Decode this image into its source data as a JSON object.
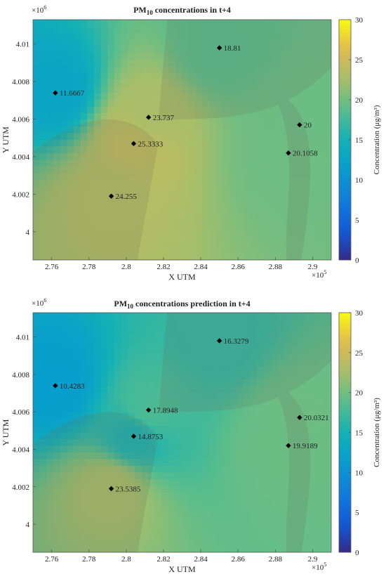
{
  "figure": {
    "colorbar_ticks": [
      "30",
      "25",
      "20",
      "15",
      "10",
      "5",
      "0"
    ],
    "x_tick_labels": [
      "2.76",
      "2.78",
      "2.8",
      "2.82",
      "2.84",
      "2.86",
      "2.88",
      "2.9"
    ],
    "y_tick_labels": [
      "4.01",
      "4.008",
      "4.006",
      "4.004",
      "4.002",
      "4"
    ]
  },
  "chart_data": [
    {
      "type": "heatmap",
      "title_main": "PM",
      "title_sub": "10",
      "title_rest": " concentrations in t+4",
      "xlabel": "X UTM",
      "ylabel": "Y UTM",
      "x_exponent_base": "×10",
      "x_exponent_power": "5",
      "y_exponent_base": "×10",
      "y_exponent_power": "6",
      "colorbar_label": "Concentration (μg/m³)",
      "colorbar_range": [
        0,
        30
      ],
      "colormap": "parula",
      "xlim": [
        2.75,
        2.91
      ],
      "ylim": [
        3.9985,
        4.0113
      ],
      "stations": [
        {
          "x": 2.762,
          "y": 4.0074,
          "value": 11.6667,
          "label": "11.6667"
        },
        {
          "x": 2.85,
          "y": 4.0098,
          "value": 18.81,
          "label": "18.81"
        },
        {
          "x": 2.812,
          "y": 4.0061,
          "value": 23.737,
          "label": "23.737"
        },
        {
          "x": 2.804,
          "y": 4.0047,
          "value": 25.3333,
          "label": "25.3333"
        },
        {
          "x": 2.893,
          "y": 4.0057,
          "value": 20,
          "label": "20"
        },
        {
          "x": 2.887,
          "y": 4.0042,
          "value": 20.1058,
          "label": "20.1058"
        },
        {
          "x": 2.792,
          "y": 4.0019,
          "value": 24.255,
          "label": "24.255"
        }
      ]
    },
    {
      "type": "heatmap",
      "title_main": "PM",
      "title_sub": "10",
      "title_rest": " concentrations prediction in t+4",
      "xlabel": "X UTM",
      "ylabel": "Y UTM",
      "x_exponent_base": "×10",
      "x_exponent_power": "5",
      "y_exponent_base": "×10",
      "y_exponent_power": "6",
      "colorbar_label": "Concentration (μg/m³)",
      "colorbar_range": [
        0,
        30
      ],
      "colormap": "parula",
      "xlim": [
        2.75,
        2.91
      ],
      "ylim": [
        3.9985,
        4.0113
      ],
      "stations": [
        {
          "x": 2.762,
          "y": 4.0074,
          "value": 10.4283,
          "label": "10.4283"
        },
        {
          "x": 2.85,
          "y": 4.0098,
          "value": 16.3279,
          "label": "16.3279"
        },
        {
          "x": 2.812,
          "y": 4.0061,
          "value": 17.8948,
          "label": "17.8948"
        },
        {
          "x": 2.804,
          "y": 4.0047,
          "value": 14.8753,
          "label": "14.8753"
        },
        {
          "x": 2.893,
          "y": 4.0057,
          "value": 20.0321,
          "label": "20.0321"
        },
        {
          "x": 2.887,
          "y": 4.0042,
          "value": 19.9189,
          "label": "19.9189"
        },
        {
          "x": 2.792,
          "y": 4.0019,
          "value": 23.5385,
          "label": "23.5385"
        }
      ]
    }
  ]
}
